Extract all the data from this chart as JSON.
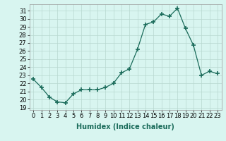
{
  "x": [
    0,
    1,
    2,
    3,
    4,
    5,
    6,
    7,
    8,
    9,
    10,
    11,
    12,
    13,
    14,
    15,
    16,
    17,
    18,
    19,
    20,
    21,
    22,
    23
  ],
  "y": [
    22.5,
    21.5,
    20.3,
    19.7,
    19.6,
    20.7,
    21.2,
    21.2,
    21.2,
    21.5,
    22.0,
    23.3,
    23.8,
    26.2,
    29.3,
    29.6,
    30.6,
    30.3,
    31.3,
    28.8,
    26.7,
    23.0,
    23.5,
    23.2
  ],
  "line_color": "#1a6b5a",
  "marker": "+",
  "marker_size": 4,
  "bg_color": "#d8f5f0",
  "grid_color": "#b8d8d0",
  "xlabel": "Humidex (Indice chaleur)",
  "ylabel_ticks": [
    19,
    20,
    21,
    22,
    23,
    24,
    25,
    26,
    27,
    28,
    29,
    30,
    31
  ],
  "ylim": [
    18.7,
    31.8
  ],
  "xlim": [
    -0.5,
    23.5
  ],
  "xticks": [
    0,
    1,
    2,
    3,
    4,
    5,
    6,
    7,
    8,
    9,
    10,
    11,
    12,
    13,
    14,
    15,
    16,
    17,
    18,
    19,
    20,
    21,
    22,
    23
  ],
  "axis_label_fontsize": 7,
  "tick_fontsize": 6
}
